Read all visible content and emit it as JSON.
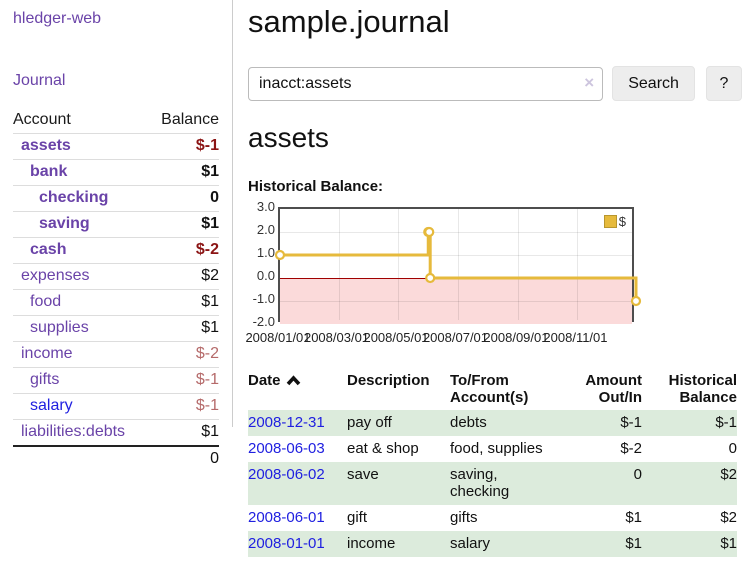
{
  "sidebar": {
    "brand": "hledger-web",
    "journal_link": "Journal",
    "table": {
      "header_account": "Account",
      "header_balance": "Balance",
      "rows": [
        {
          "name": "assets",
          "balance": "$-1",
          "name_class": "acct lvl1 strong",
          "bal_class": "bal strong neg"
        },
        {
          "name": "bank",
          "balance": "$1",
          "name_class": "acct lvl2 strong",
          "bal_class": "bal strong"
        },
        {
          "name": "checking",
          "balance": "0",
          "name_class": "acct lvl3 strong",
          "bal_class": "bal strong"
        },
        {
          "name": "saving",
          "balance": "$1",
          "name_class": "acct lvl3 strong",
          "bal_class": "bal strong"
        },
        {
          "name": "cash",
          "balance": "$-2",
          "name_class": "acct lvl2 strong",
          "bal_class": "bal strong neg"
        },
        {
          "name": "expenses",
          "balance": "$2",
          "name_class": "acct lvl1",
          "bal_class": "bal"
        },
        {
          "name": "food",
          "balance": "$1",
          "name_class": "acct lvl2",
          "bal_class": "bal"
        },
        {
          "name": "supplies",
          "balance": "$1",
          "name_class": "acct lvl2",
          "bal_class": "bal"
        },
        {
          "name": "income",
          "balance": "$-2",
          "name_class": "acct lvl1",
          "bal_class": "bal fneg"
        },
        {
          "name": "gifts",
          "balance": "$-1",
          "name_class": "acct lvl2",
          "bal_class": "bal fneg"
        },
        {
          "name": "salary",
          "balance": "$-1",
          "name_class": "acct lvl2 blue",
          "bal_class": "bal fneg"
        },
        {
          "name": "liabilities:debts",
          "balance": "$1",
          "name_class": "acct lvl1",
          "bal_class": "bal"
        }
      ],
      "total": "0"
    }
  },
  "main": {
    "title": "sample.journal",
    "search": {
      "value": "inacct:assets",
      "clear_icon": "×",
      "button_label": "Search",
      "help_label": "?"
    },
    "account_heading": "assets",
    "chart_label": "Historical Balance:"
  },
  "chart_data": {
    "type": "line",
    "step": true,
    "title": "Historical Balance",
    "legend": "$",
    "legend_position": "top-right",
    "line_color": "#e6ba3c",
    "marker_fill": "#ffffff",
    "negative_region_color": "#fbdada",
    "zero_line_color": "#a00000",
    "ylim": [
      -2,
      3
    ],
    "y_ticks": [
      3.0,
      2.0,
      1.0,
      0.0,
      -1.0,
      -2.0
    ],
    "x_ticks": [
      "2008/01/01",
      "2008/03/01",
      "2008/05/01",
      "2008/07/01",
      "2008/09/01",
      "2008/11/01"
    ],
    "series": [
      {
        "name": "$",
        "points": [
          {
            "x": "2008/01/01",
            "y": 1
          },
          {
            "x": "2008/06/01",
            "y": 2
          },
          {
            "x": "2008/06/02",
            "y": 2
          },
          {
            "x": "2008/06/03",
            "y": 0
          },
          {
            "x": "2008/12/31",
            "y": -1
          }
        ]
      }
    ]
  },
  "register": {
    "headers": {
      "date": "Date",
      "description": "Description",
      "tofrom1": "To/From",
      "tofrom2": "Account(s)",
      "amount1": "Amount",
      "amount2": "Out/In",
      "balance1": "Historical",
      "balance2": "Balance"
    },
    "rows": [
      {
        "date": "2008-12-31",
        "description": "pay off",
        "accounts1": "debts",
        "accounts2": "",
        "amount": "$-1",
        "balance": "$-1",
        "amount_class": "amt neg",
        "balance_class": "amt neg"
      },
      {
        "date": "2008-06-03",
        "description": "eat & shop",
        "accounts1": "food, supplies",
        "accounts2": "",
        "amount": "$-2",
        "balance": "0",
        "amount_class": "amt neg",
        "balance_class": "amt"
      },
      {
        "date": "2008-06-02",
        "description": "save",
        "accounts1": "saving,",
        "accounts2": "checking",
        "amount": "0",
        "balance": "$2",
        "amount_class": "amt",
        "balance_class": "amt"
      },
      {
        "date": "2008-06-01",
        "description": "gift",
        "accounts1": "gifts",
        "accounts2": "",
        "amount": "$1",
        "balance": "$2",
        "amount_class": "amt",
        "balance_class": "amt"
      },
      {
        "date": "2008-01-01",
        "description": "income",
        "accounts1": "salary",
        "accounts2": "",
        "amount": "$1",
        "balance": "$1",
        "amount_class": "amt",
        "balance_class": "amt"
      }
    ]
  }
}
